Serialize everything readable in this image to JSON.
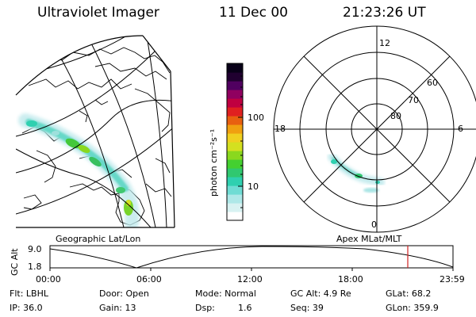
{
  "header": {
    "instrument": "Ultraviolet Imager",
    "date": "11 Dec 00",
    "time": "21:23:26 UT"
  },
  "colorbar": {
    "unit_label": "photon cm⁻²s⁻¹",
    "ticks": [
      "100",
      "10"
    ],
    "colors": [
      "#ffffff",
      "#d8f2f2",
      "#aee8e8",
      "#6fdcd4",
      "#2fd0b0",
      "#30c870",
      "#44d030",
      "#8ad81e",
      "#d4e020",
      "#f0d020",
      "#f0a010",
      "#e86010",
      "#e02020",
      "#c00040",
      "#900060",
      "#500060",
      "#200030",
      "#080018"
    ]
  },
  "left_panel": {
    "label": "Geographic Lat/Lon"
  },
  "polar_panel": {
    "label": "Apex MLat/MLT",
    "mlt_labels": {
      "top": "12",
      "left": "18",
      "right": "6",
      "bottom": "0"
    },
    "lat_labels": [
      "60",
      "70",
      "80"
    ]
  },
  "orbit": {
    "y_axis_label": "GC Alt",
    "y_ticks": [
      "9.0",
      "1.8"
    ],
    "x_ticks": [
      "00:00",
      "06:00",
      "12:00",
      "18:00",
      "23:59"
    ],
    "marker_color": "#d02020"
  },
  "info": {
    "filter": "Flt: LBHL",
    "door": "Door: Open",
    "mode": "Mode: Normal",
    "gc_alt": "GC Alt: 4.9 Re",
    "glat": "GLat: 68.2",
    "ip": "IP: 36.0",
    "gain": "Gain: 13",
    "dsp_label": "Dsp:",
    "dsp_value": "1.6",
    "seq": "Seq: 39",
    "glon": "GLon: 359.9"
  }
}
